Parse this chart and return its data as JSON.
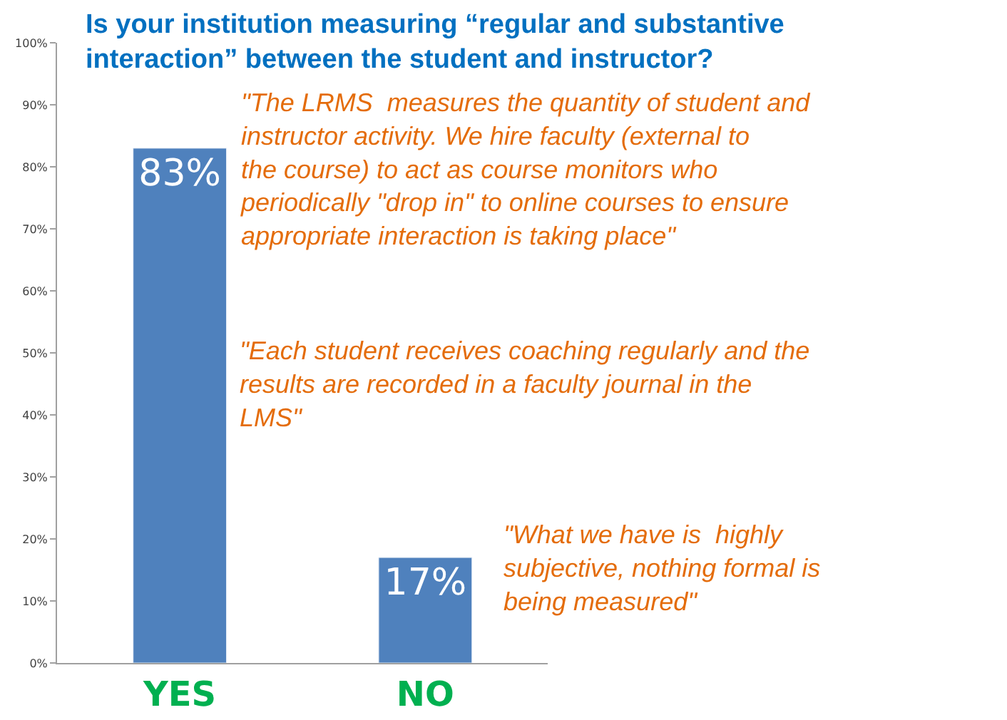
{
  "chart_data": {
    "type": "bar",
    "title": "Is your institution measuring “regular and substantive\ninteraction” between the student and instructor?",
    "categories": [
      "YES",
      "NO"
    ],
    "values": [
      83,
      17
    ],
    "color": "#4f81bd",
    "value_labels": [
      "83%",
      "17%"
    ],
    "ylim": [
      0,
      100
    ],
    "yticks": [
      {
        "value": 0,
        "label": "0%"
      },
      {
        "value": 10,
        "label": "10%"
      },
      {
        "value": 20,
        "label": "20%"
      },
      {
        "value": 30,
        "label": "30%"
      },
      {
        "value": 40,
        "label": "40%"
      },
      {
        "value": 50,
        "label": "50%"
      },
      {
        "value": 60,
        "label": "60%"
      },
      {
        "value": 70,
        "label": "70%"
      },
      {
        "value": 80,
        "label": "80%"
      },
      {
        "value": 90,
        "label": "90%"
      },
      {
        "value": 100,
        "label": "100%"
      }
    ],
    "legend": false,
    "annotations": [
      "\"The LRMS  measures the quantity of student and\ninstructor activity. We hire faculty (external to\nthe course) to act as course monitors who\nperiodically \"drop in\" to online courses to ensure\nappropriate interaction is taking place\"",
      "\"Each student receives coaching regularly and the\nresults are recorded in a faculty journal in the\nLMS\"",
      "\"What we have is  highly\nsubjective, nothing formal is\nbeing measured\""
    ]
  }
}
